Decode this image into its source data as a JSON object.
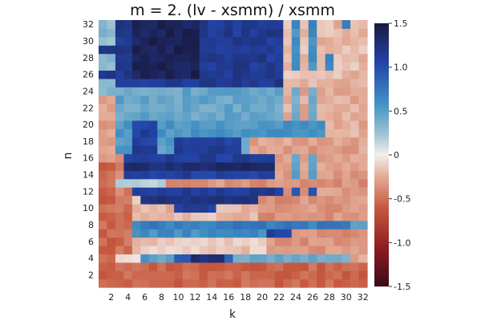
{
  "chart_data": {
    "type": "heatmap",
    "title": "m = 2. (lv - xsmm) / xsmm",
    "xlabel": "k",
    "ylabel": "n",
    "x_range": [
      1,
      32
    ],
    "y_range": [
      1,
      32
    ],
    "x_ticks": [
      "2",
      "4",
      "6",
      "8",
      "10",
      "12",
      "14",
      "16",
      "18",
      "20",
      "22",
      "24",
      "26",
      "28",
      "30",
      "32"
    ],
    "y_ticks": [
      "2",
      "4",
      "6",
      "8",
      "10",
      "12",
      "14",
      "16",
      "18",
      "20",
      "22",
      "24",
      "26",
      "28",
      "30",
      "32"
    ],
    "colorbar": {
      "range": [
        -1.5,
        1.5
      ],
      "ticks": [
        "-1.5",
        "-1.0",
        "-0.5",
        "0",
        "0.5",
        "1.0",
        "1.5"
      ],
      "colormap": "balance (dark red → white → dark blue)"
    },
    "grid": false,
    "approximate_values_by_row": {
      "n=32": "k1-2 ≈0.5, k3-22 ≈1.1-1.4, k23-32 ≈ -0.2 to 0.8",
      "n=25-31": "k3-22 ≈1.0-1.4 (darkest 1.4 near k6-10), k23-32 ≈ -0.3 to 0.8",
      "n=17-24": "alternating bands: ≈0.3-0.7 (light blue) and ≈1.0-1.2 (blue) for k3-22; k23-32 ≈ -0.3",
      "n=14-16": "k4-22 ≈1.1-1.3; k23-32 ≈ -0.3",
      "n=13": "≈ -0.3",
      "n=12": "k5-22 ≈1.2; k23-32 ≈ -0.3 with stripes ≈1.0",
      "n=9-11": "k5-19 ≈ -0.4 to 1.2 mixed",
      "n=8": "k5-32 ≈0.6-0.8",
      "n=5-7": "k5-20 ≈ -0.4 to 0.8 mixed",
      "n=4": "k3-5 ≈0, k6-10 ≈0.5, k10-16 ≈1.2, k17-30 ≈0.4",
      "n=1-3": "≈ -0.5 to -0.6"
    }
  }
}
